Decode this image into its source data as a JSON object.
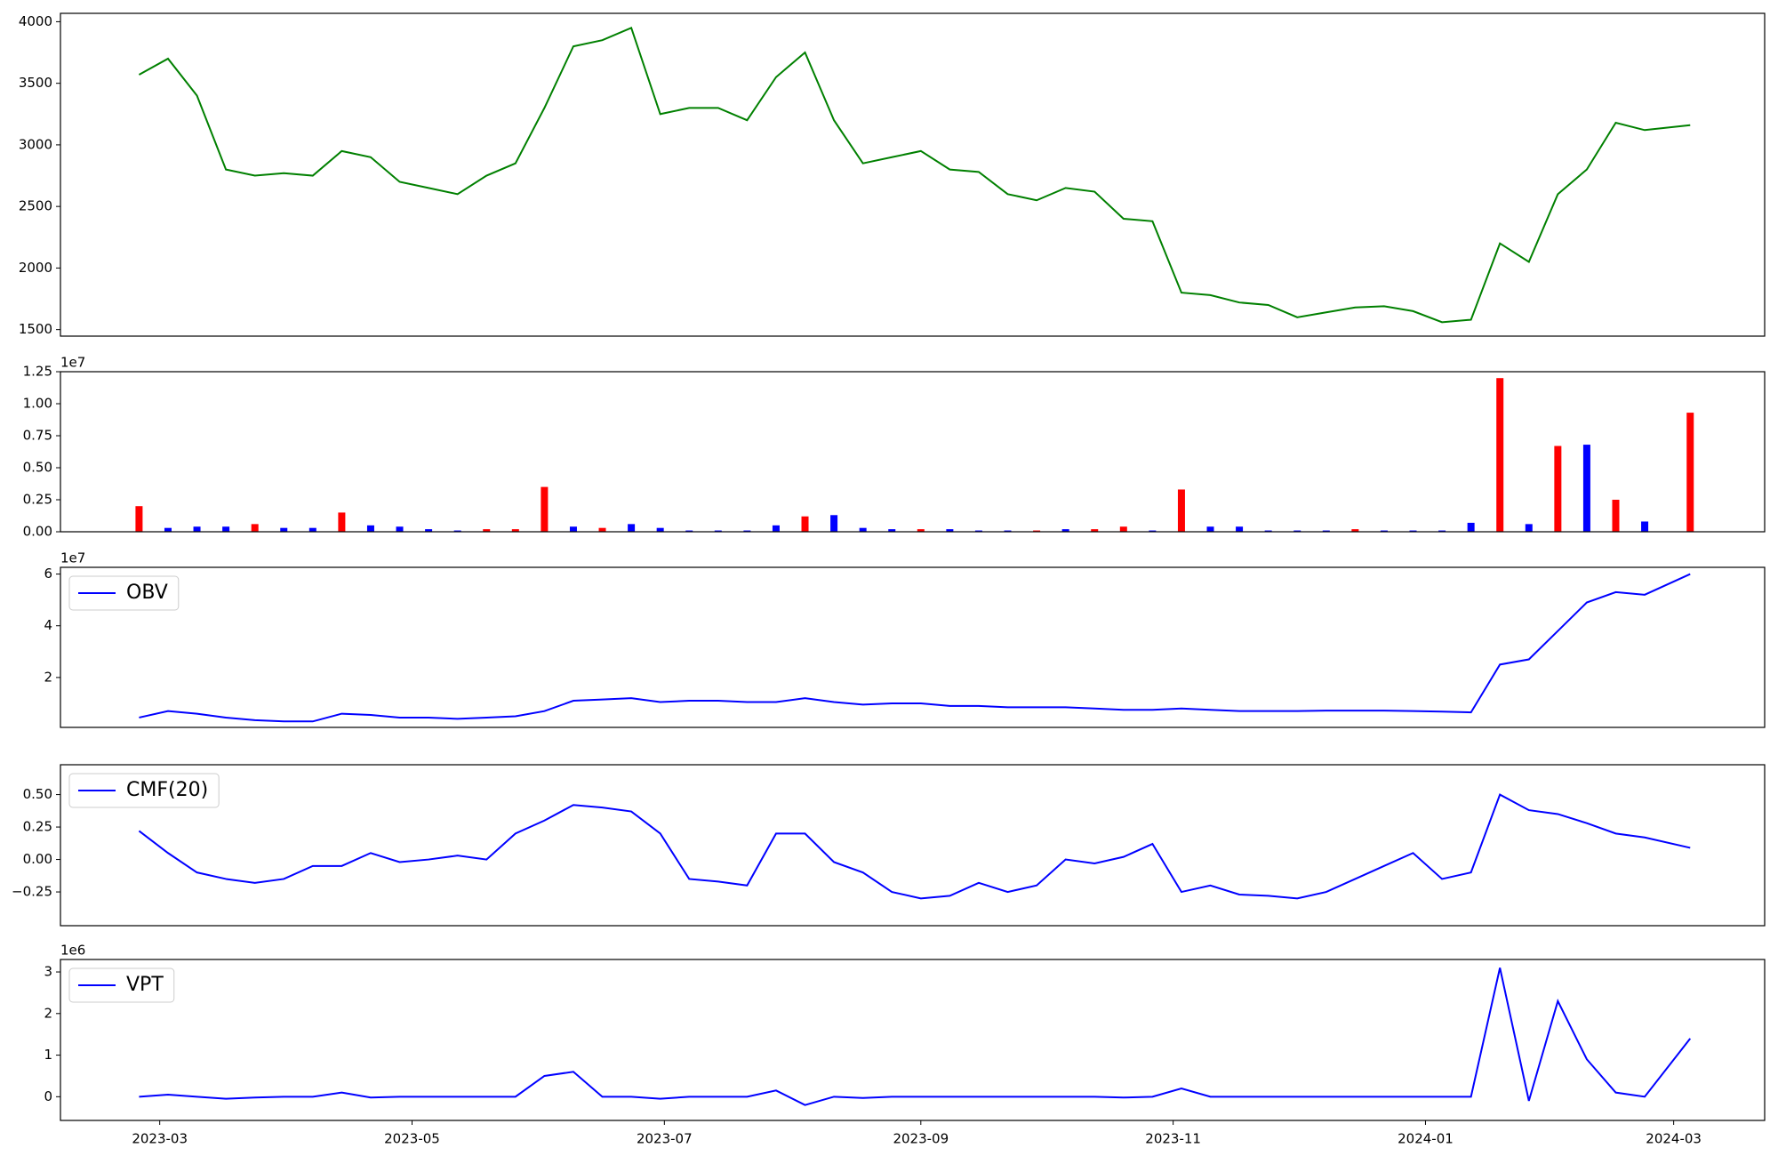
{
  "chart_data": [
    {
      "type": "line",
      "color": "#008000",
      "x": [
        "2023-02-24",
        "2023-03-03",
        "2023-03-10",
        "2023-03-17",
        "2023-03-24",
        "2023-03-31",
        "2023-04-07",
        "2023-04-14",
        "2023-04-21",
        "2023-04-28",
        "2023-05-05",
        "2023-05-12",
        "2023-05-19",
        "2023-05-26",
        "2023-06-02",
        "2023-06-09",
        "2023-06-16",
        "2023-06-23",
        "2023-06-30",
        "2023-07-07",
        "2023-07-14",
        "2023-07-21",
        "2023-07-28",
        "2023-08-04",
        "2023-08-11",
        "2023-08-18",
        "2023-08-25",
        "2023-09-01",
        "2023-09-08",
        "2023-09-15",
        "2023-09-22",
        "2023-09-29",
        "2023-10-06",
        "2023-10-13",
        "2023-10-20",
        "2023-10-27",
        "2023-11-03",
        "2023-11-10",
        "2023-11-17",
        "2023-11-24",
        "2023-12-01",
        "2023-12-08",
        "2023-12-15",
        "2023-12-22",
        "2023-12-29",
        "2024-01-05",
        "2024-01-12",
        "2024-01-19",
        "2024-01-26",
        "2024-02-02",
        "2024-02-09",
        "2024-02-16",
        "2024-02-23",
        "2024-03-05"
      ],
      "values": [
        3570,
        3700,
        3400,
        2800,
        2750,
        2770,
        2750,
        2950,
        2900,
        2700,
        2650,
        2600,
        2750,
        2850,
        3300,
        3800,
        3850,
        3950,
        3250,
        3300,
        3300,
        3200,
        3550,
        3750,
        3200,
        2850,
        2900,
        2950,
        2800,
        2780,
        2600,
        2550,
        2650,
        2620,
        2400,
        2380,
        1800,
        1780,
        1720,
        1700,
        1600,
        1640,
        1680,
        1690,
        1650,
        1560,
        1580,
        2200,
        2050,
        2600,
        2800,
        3180,
        3120,
        3160
      ],
      "xlim": [
        "2023-02-05",
        "2024-03-23"
      ],
      "ylim": [
        1447,
        4068
      ],
      "yticks": [
        1500,
        2000,
        2500,
        3000,
        3500,
        4000
      ]
    },
    {
      "type": "bar",
      "offset_label": "1e7",
      "x": [
        "2023-02-24",
        "2023-03-03",
        "2023-03-10",
        "2023-03-17",
        "2023-03-24",
        "2023-03-31",
        "2023-04-07",
        "2023-04-14",
        "2023-04-21",
        "2023-04-28",
        "2023-05-05",
        "2023-05-12",
        "2023-05-19",
        "2023-05-26",
        "2023-06-02",
        "2023-06-09",
        "2023-06-16",
        "2023-06-23",
        "2023-06-30",
        "2023-07-07",
        "2023-07-14",
        "2023-07-21",
        "2023-07-28",
        "2023-08-04",
        "2023-08-11",
        "2023-08-18",
        "2023-08-25",
        "2023-09-01",
        "2023-09-08",
        "2023-09-15",
        "2023-09-22",
        "2023-09-29",
        "2023-10-06",
        "2023-10-13",
        "2023-10-20",
        "2023-10-27",
        "2023-11-03",
        "2023-11-10",
        "2023-11-17",
        "2023-11-24",
        "2023-12-01",
        "2023-12-08",
        "2023-12-15",
        "2023-12-22",
        "2023-12-29",
        "2024-01-05",
        "2024-01-12",
        "2024-01-19",
        "2024-01-26",
        "2024-02-02",
        "2024-02-09",
        "2024-02-16",
        "2024-02-23",
        "2024-03-05"
      ],
      "values": [
        0.2,
        0.03,
        0.04,
        0.04,
        0.06,
        0.03,
        0.03,
        0.15,
        0.05,
        0.04,
        0.02,
        0.01,
        0.02,
        0.02,
        0.35,
        0.04,
        0.03,
        0.06,
        0.03,
        0.01,
        0.01,
        0.01,
        0.05,
        0.12,
        0.13,
        0.03,
        0.02,
        0.02,
        0.02,
        0.01,
        0.01,
        0.01,
        0.02,
        0.02,
        0.04,
        0.01,
        0.33,
        0.04,
        0.04,
        0.01,
        0.01,
        0.01,
        0.02,
        0.01,
        0.01,
        0.01,
        0.07,
        1.2,
        0.06,
        0.67,
        0.68,
        0.25,
        0.08,
        0.93
      ],
      "colors": [
        "#ff0000",
        "#0000ff",
        "#0000ff",
        "#0000ff",
        "#ff0000",
        "#0000ff",
        "#0000ff",
        "#ff0000",
        "#0000ff",
        "#0000ff",
        "#0000ff",
        "#0000ff",
        "#ff0000",
        "#ff0000",
        "#ff0000",
        "#0000ff",
        "#ff0000",
        "#0000ff",
        "#0000ff",
        "#0000ff",
        "#0000ff",
        "#0000ff",
        "#0000ff",
        "#ff0000",
        "#0000ff",
        "#0000ff",
        "#0000ff",
        "#ff0000",
        "#0000ff",
        "#0000ff",
        "#0000ff",
        "#ff0000",
        "#0000ff",
        "#ff0000",
        "#ff0000",
        "#0000ff",
        "#ff0000",
        "#0000ff",
        "#0000ff",
        "#0000ff",
        "#0000ff",
        "#0000ff",
        "#ff0000",
        "#0000ff",
        "#0000ff",
        "#0000ff",
        "#0000ff",
        "#ff0000",
        "#0000ff",
        "#ff0000",
        "#0000ff",
        "#ff0000",
        "#0000ff",
        "#ff0000"
      ],
      "xlim": [
        "2023-02-05",
        "2024-03-23"
      ],
      "ylim": [
        0,
        1.25
      ],
      "yticks": [
        {
          "value": 0,
          "label": "0.00"
        },
        0.25,
        {
          "value": 0.5,
          "label": "0.50"
        },
        0.75,
        {
          "value": 1,
          "label": "1.00"
        },
        1.25
      ]
    },
    {
      "type": "line",
      "offset_label": "1e7",
      "legend": "upper left",
      "x": [
        "2023-02-24",
        "2023-03-03",
        "2023-03-10",
        "2023-03-17",
        "2023-03-24",
        "2023-03-31",
        "2023-04-07",
        "2023-04-14",
        "2023-04-21",
        "2023-04-28",
        "2023-05-05",
        "2023-05-12",
        "2023-05-19",
        "2023-05-26",
        "2023-06-02",
        "2023-06-09",
        "2023-06-16",
        "2023-06-23",
        "2023-06-30",
        "2023-07-07",
        "2023-07-14",
        "2023-07-21",
        "2023-07-28",
        "2023-08-04",
        "2023-08-11",
        "2023-08-18",
        "2023-08-25",
        "2023-09-01",
        "2023-09-08",
        "2023-09-15",
        "2023-09-22",
        "2023-09-29",
        "2023-10-06",
        "2023-10-13",
        "2023-10-20",
        "2023-10-27",
        "2023-11-03",
        "2023-11-10",
        "2023-11-17",
        "2023-11-24",
        "2023-12-01",
        "2023-12-08",
        "2023-12-15",
        "2023-12-22",
        "2023-12-29",
        "2024-01-05",
        "2024-01-12",
        "2024-01-19",
        "2024-01-26",
        "2024-02-02",
        "2024-02-09",
        "2024-02-16",
        "2024-02-23",
        "2024-03-05"
      ],
      "series": [
        {
          "name": "OBV",
          "color": "#0000ff",
          "values": [
            0.45,
            0.7,
            0.6,
            0.45,
            0.35,
            0.3,
            0.3,
            0.6,
            0.55,
            0.45,
            0.45,
            0.4,
            0.45,
            0.5,
            0.7,
            1.1,
            1.15,
            1.2,
            1.05,
            1.1,
            1.1,
            1.05,
            1.05,
            1.2,
            1.05,
            0.95,
            1.0,
            1.0,
            0.9,
            0.9,
            0.85,
            0.85,
            0.85,
            0.8,
            0.75,
            0.75,
            0.8,
            0.75,
            0.7,
            0.7,
            0.7,
            0.72,
            0.72,
            0.72,
            0.7,
            0.68,
            0.65,
            2.5,
            2.7,
            3.8,
            4.9,
            5.3,
            5.2,
            6.0
          ]
        }
      ],
      "xlim": [
        "2023-02-05",
        "2024-03-23"
      ],
      "ylim": [
        0.07,
        6.26
      ],
      "yticks": [
        2,
        4,
        6
      ]
    },
    {
      "type": "line",
      "legend": "upper left",
      "x": [
        "2023-02-24",
        "2023-03-03",
        "2023-03-10",
        "2023-03-17",
        "2023-03-24",
        "2023-03-31",
        "2023-04-07",
        "2023-04-14",
        "2023-04-21",
        "2023-04-28",
        "2023-05-05",
        "2023-05-12",
        "2023-05-19",
        "2023-05-26",
        "2023-06-02",
        "2023-06-09",
        "2023-06-16",
        "2023-06-23",
        "2023-06-30",
        "2023-07-07",
        "2023-07-14",
        "2023-07-21",
        "2023-07-28",
        "2023-08-04",
        "2023-08-11",
        "2023-08-18",
        "2023-08-25",
        "2023-09-01",
        "2023-09-08",
        "2023-09-15",
        "2023-09-22",
        "2023-09-29",
        "2023-10-06",
        "2023-10-13",
        "2023-10-20",
        "2023-10-27",
        "2023-11-03",
        "2023-11-10",
        "2023-11-17",
        "2023-11-24",
        "2023-12-01",
        "2023-12-08",
        "2023-12-15",
        "2023-12-22",
        "2023-12-29",
        "2024-01-05",
        "2024-01-12",
        "2024-01-19",
        "2024-01-26",
        "2024-02-02",
        "2024-02-09",
        "2024-02-16",
        "2024-02-23",
        "2024-03-05"
      ],
      "series": [
        {
          "name": "CMF(20)",
          "color": "#0000ff",
          "values": [
            0.22,
            0.05,
            -0.1,
            -0.15,
            -0.18,
            -0.15,
            -0.05,
            -0.05,
            0.05,
            -0.02,
            0.0,
            0.03,
            0.0,
            0.2,
            0.3,
            0.42,
            0.4,
            0.37,
            0.2,
            -0.15,
            -0.17,
            -0.2,
            0.2,
            0.2,
            -0.02,
            -0.1,
            -0.25,
            -0.3,
            -0.28,
            -0.18,
            -0.25,
            -0.2,
            0.0,
            -0.03,
            0.02,
            0.12,
            -0.25,
            -0.2,
            -0.27,
            -0.28,
            -0.3,
            -0.25,
            -0.15,
            -0.05,
            0.05,
            -0.15,
            -0.1,
            0.5,
            0.38,
            0.35,
            0.28,
            0.2,
            0.17,
            0.09
          ]
        }
      ],
      "xlim": [
        "2023-02-05",
        "2024-03-23"
      ],
      "ylim": [
        -0.51,
        0.73
      ],
      "yticks": [
        {
          "value": -0.25,
          "label": "−0.25"
        },
        {
          "value": 0,
          "label": "0.00"
        },
        0.25,
        {
          "value": 0.5,
          "label": "0.50"
        }
      ]
    },
    {
      "type": "line",
      "offset_label": "1e6",
      "legend": "upper left",
      "x": [
        "2023-02-24",
        "2023-03-03",
        "2023-03-10",
        "2023-03-17",
        "2023-03-24",
        "2023-03-31",
        "2023-04-07",
        "2023-04-14",
        "2023-04-21",
        "2023-04-28",
        "2023-05-05",
        "2023-05-12",
        "2023-05-19",
        "2023-05-26",
        "2023-06-02",
        "2023-06-09",
        "2023-06-16",
        "2023-06-23",
        "2023-06-30",
        "2023-07-07",
        "2023-07-14",
        "2023-07-21",
        "2023-07-28",
        "2023-08-04",
        "2023-08-11",
        "2023-08-18",
        "2023-08-25",
        "2023-09-01",
        "2023-09-08",
        "2023-09-15",
        "2023-09-22",
        "2023-09-29",
        "2023-10-06",
        "2023-10-13",
        "2023-10-20",
        "2023-10-27",
        "2023-11-03",
        "2023-11-10",
        "2023-11-17",
        "2023-11-24",
        "2023-12-01",
        "2023-12-08",
        "2023-12-15",
        "2023-12-22",
        "2023-12-29",
        "2024-01-05",
        "2024-01-12",
        "2024-01-19",
        "2024-01-26",
        "2024-02-02",
        "2024-02-09",
        "2024-02-16",
        "2024-02-23",
        "2024-03-05"
      ],
      "series": [
        {
          "name": "VPT",
          "color": "#0000ff",
          "values": [
            0.0,
            0.05,
            0.0,
            -0.05,
            -0.02,
            0.0,
            0.0,
            0.1,
            -0.02,
            0.0,
            0.0,
            0.0,
            0.0,
            0.0,
            0.5,
            0.6,
            0.0,
            0.0,
            -0.05,
            0.0,
            0.0,
            0.0,
            0.15,
            -0.2,
            0.0,
            -0.03,
            0.0,
            0.0,
            0.0,
            0.0,
            0.0,
            0.0,
            0.0,
            0.0,
            -0.02,
            0.0,
            0.2,
            0.0,
            0.0,
            0.0,
            0.0,
            0.0,
            0.0,
            0.0,
            0.0,
            0.0,
            0.0,
            3.1,
            -0.1,
            2.3,
            0.9,
            0.1,
            0.0,
            1.4
          ]
        }
      ],
      "xlim": [
        "2023-02-05",
        "2024-03-23"
      ],
      "ylim": [
        -0.57,
        3.3
      ],
      "yticks": [
        0,
        1,
        2,
        3
      ],
      "xticks": [
        {
          "value": "2023-03-01",
          "label": "2023-03"
        },
        {
          "value": "2023-05-01",
          "label": "2023-05"
        },
        {
          "value": "2023-07-01",
          "label": "2023-07"
        },
        {
          "value": "2023-09-01",
          "label": "2023-09"
        },
        {
          "value": "2023-11-01",
          "label": "2023-11"
        },
        {
          "value": "2024-01-01",
          "label": "2024-01"
        },
        {
          "value": "2024-03-01",
          "label": "2024-03"
        }
      ]
    }
  ]
}
